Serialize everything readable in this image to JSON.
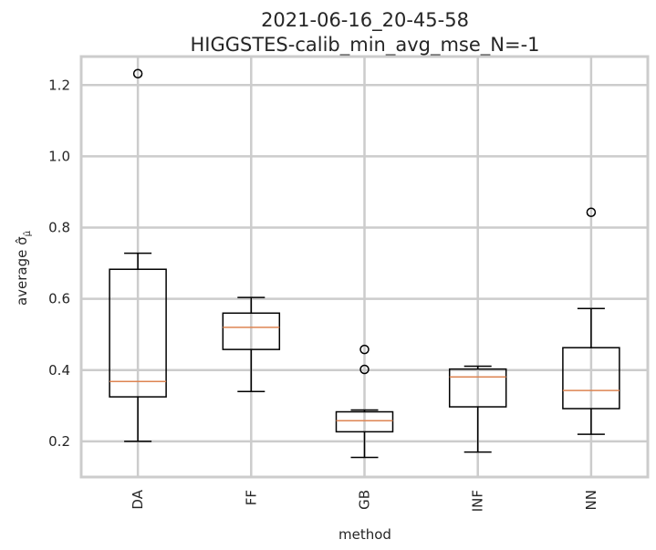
{
  "chart_data": {
    "type": "box",
    "title_line1": "2021-06-16_20-45-58",
    "title_line2": "HIGGSTES-calib_min_avg_mse_N=-1",
    "xlabel": "method",
    "ylabel": "average σ̂",
    "ylabel_sub": "μ̂",
    "ylim": [
      0.1,
      1.28
    ],
    "yticks": [
      0.2,
      0.4,
      0.6,
      0.8,
      1.0,
      1.2
    ],
    "ytick_labels": [
      "0.2",
      "0.4",
      "0.6",
      "0.8",
      "1.0",
      "1.2"
    ],
    "grid": true,
    "categories": [
      "DA",
      "FF",
      "GB",
      "INF",
      "NN"
    ],
    "series": [
      {
        "category": "DA",
        "whisker_low": 0.2,
        "q1": 0.325,
        "median": 0.368,
        "q3": 0.683,
        "whisker_high": 0.728,
        "outliers": [
          1.232
        ]
      },
      {
        "category": "FF",
        "whisker_low": 0.34,
        "q1": 0.458,
        "median": 0.52,
        "q3": 0.56,
        "whisker_high": 0.604,
        "outliers": []
      },
      {
        "category": "GB",
        "whisker_low": 0.155,
        "q1": 0.227,
        "median": 0.258,
        "q3": 0.283,
        "whisker_high": 0.288,
        "outliers": [
          0.402,
          0.458
        ]
      },
      {
        "category": "INF",
        "whisker_low": 0.17,
        "q1": 0.297,
        "median": 0.381,
        "q3": 0.403,
        "whisker_high": 0.411,
        "outliers": []
      },
      {
        "category": "NN",
        "whisker_low": 0.22,
        "q1": 0.292,
        "median": 0.343,
        "q3": 0.463,
        "whisker_high": 0.573,
        "outliers": [
          0.843
        ]
      }
    ],
    "colors": {
      "box": "#000000",
      "median": "#dd8452",
      "grid": "#cccccc",
      "frame": "#cccccc",
      "text": "#262626"
    }
  }
}
